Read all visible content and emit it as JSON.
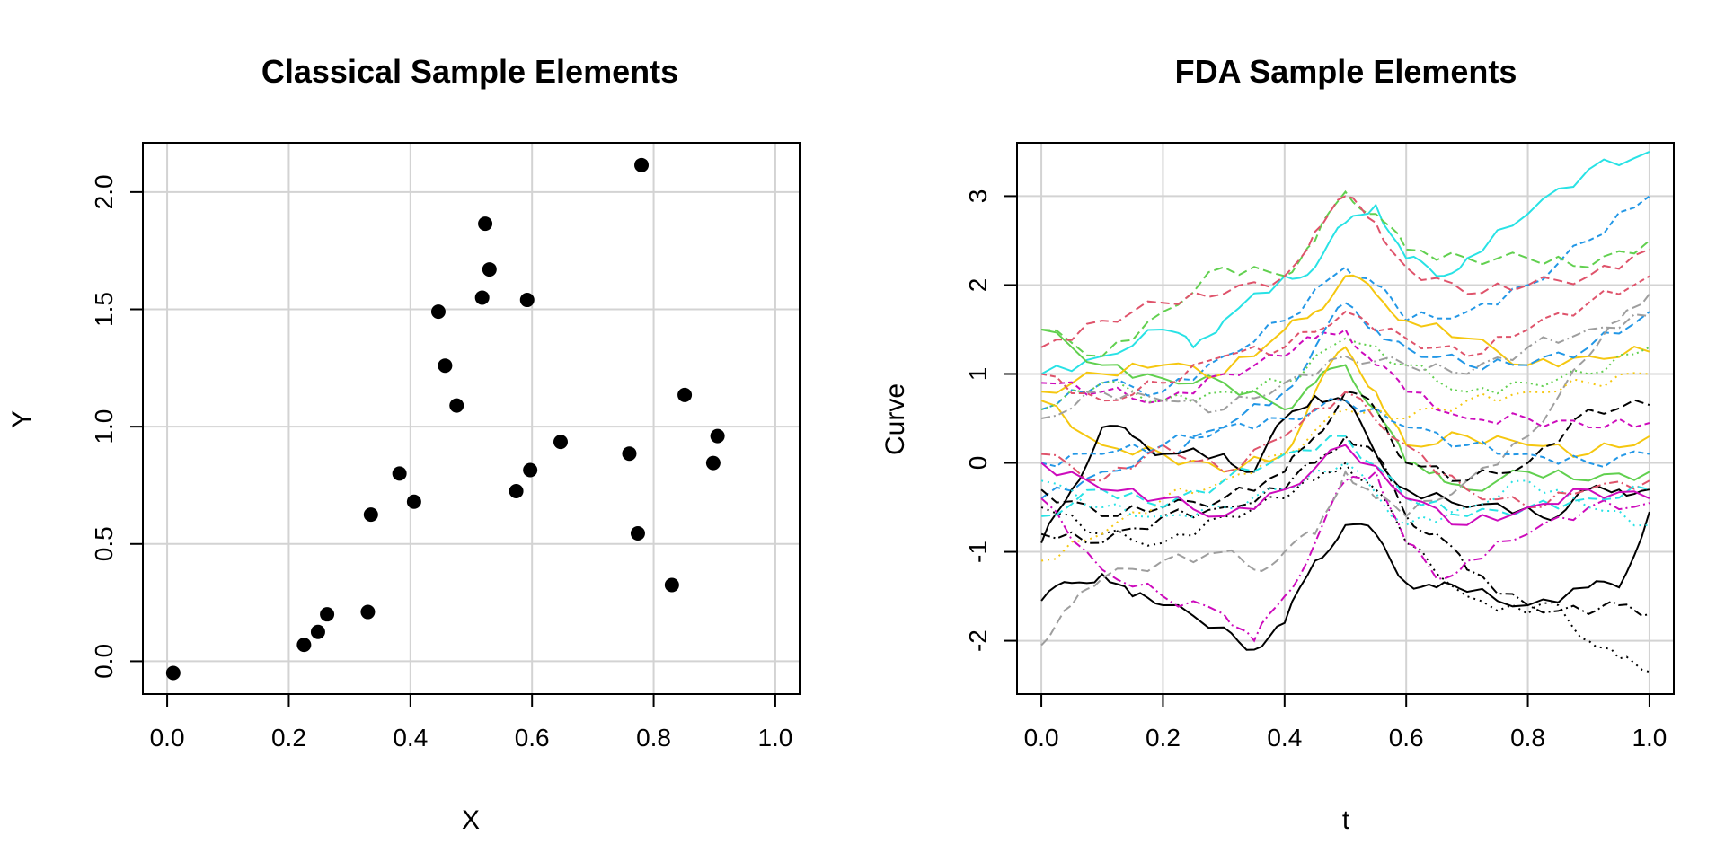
{
  "chart_data": [
    {
      "type": "scatter",
      "title": "Classical Sample Elements",
      "xlabel": "X",
      "ylabel": "Y",
      "xlim": [
        -0.04,
        1.04
      ],
      "ylim": [
        -0.14,
        2.21
      ],
      "xticks": [
        "0.0",
        "0.2",
        "0.4",
        "0.6",
        "0.8",
        "1.0"
      ],
      "yticks": [
        "0.0",
        "0.5",
        "1.0",
        "1.5",
        "2.0"
      ],
      "grid": true,
      "point_color": "#000000",
      "points": [
        {
          "x": 0.01,
          "y": -0.05
        },
        {
          "x": 0.225,
          "y": 0.07
        },
        {
          "x": 0.248,
          "y": 0.125
        },
        {
          "x": 0.263,
          "y": 0.2
        },
        {
          "x": 0.33,
          "y": 0.21
        },
        {
          "x": 0.335,
          "y": 0.625
        },
        {
          "x": 0.382,
          "y": 0.8
        },
        {
          "x": 0.406,
          "y": 0.68
        },
        {
          "x": 0.446,
          "y": 1.49
        },
        {
          "x": 0.457,
          "y": 1.26
        },
        {
          "x": 0.476,
          "y": 1.09
        },
        {
          "x": 0.518,
          "y": 1.55
        },
        {
          "x": 0.523,
          "y": 1.865
        },
        {
          "x": 0.53,
          "y": 1.67
        },
        {
          "x": 0.574,
          "y": 0.725
        },
        {
          "x": 0.592,
          "y": 1.54
        },
        {
          "x": 0.597,
          "y": 0.815
        },
        {
          "x": 0.647,
          "y": 0.935
        },
        {
          "x": 0.76,
          "y": 0.885
        },
        {
          "x": 0.774,
          "y": 0.545
        },
        {
          "x": 0.78,
          "y": 2.115
        },
        {
          "x": 0.83,
          "y": 0.325
        },
        {
          "x": 0.851,
          "y": 1.135
        },
        {
          "x": 0.898,
          "y": 0.845
        },
        {
          "x": 0.905,
          "y": 0.96
        }
      ]
    },
    {
      "type": "line",
      "title": "FDA Sample Elements",
      "xlabel": "t",
      "ylabel": "Curve",
      "xlim": [
        -0.04,
        1.04
      ],
      "ylim": [
        -2.6,
        3.6
      ],
      "xticks": [
        "0.0",
        "0.2",
        "0.4",
        "0.6",
        "0.8",
        "1.0"
      ],
      "yticks": [
        "-2",
        "-1",
        "0",
        "1",
        "2",
        "3"
      ],
      "grid": true,
      "palette": [
        "#000000",
        "#DF536B",
        "#61D04F",
        "#2297E6",
        "#28E2E5",
        "#CD0BBC",
        "#F5C710",
        "#9E9E9E"
      ],
      "series": [
        {
          "color": "#28E2E5",
          "dash": "solid",
          "x": [
            0,
            0.1,
            0.2,
            0.25,
            0.3,
            0.4,
            0.45,
            0.5,
            0.55,
            0.6,
            0.65,
            0.7,
            0.8,
            0.9,
            1.0
          ],
          "y": [
            1.0,
            1.2,
            1.5,
            1.3,
            1.6,
            2.1,
            2.2,
            2.7,
            2.9,
            2.3,
            2.1,
            2.3,
            2.8,
            3.3,
            3.5
          ]
        },
        {
          "color": "#2297E6",
          "dash": "6,4",
          "x": [
            0,
            0.1,
            0.2,
            0.3,
            0.4,
            0.5,
            0.55,
            0.6,
            0.7,
            0.8,
            0.9,
            1.0
          ],
          "y": [
            0.6,
            0.9,
            0.8,
            1.2,
            1.6,
            2.2,
            2.0,
            1.6,
            1.7,
            2.0,
            2.5,
            3.0
          ]
        },
        {
          "color": "#61D04F",
          "dash": "10,5",
          "x": [
            0,
            0.1,
            0.2,
            0.3,
            0.4,
            0.45,
            0.5,
            0.55,
            0.6,
            0.7,
            0.8,
            0.9,
            1.0
          ],
          "y": [
            1.5,
            1.2,
            1.7,
            2.2,
            2.1,
            2.5,
            3.05,
            2.8,
            2.4,
            2.3,
            2.3,
            2.2,
            2.5
          ]
        },
        {
          "color": "#DF536B",
          "dash": "10,5",
          "x": [
            0,
            0.1,
            0.2,
            0.3,
            0.4,
            0.45,
            0.5,
            0.55,
            0.6,
            0.7,
            0.8,
            0.9,
            1.0
          ],
          "y": [
            1.3,
            1.6,
            1.8,
            1.9,
            2.1,
            2.6,
            3.0,
            2.7,
            2.2,
            1.9,
            2.0,
            2.1,
            2.4
          ]
        },
        {
          "color": "#61D04F",
          "dash": "solid",
          "x": [
            0,
            0.1,
            0.2,
            0.3,
            0.4,
            0.45,
            0.5,
            0.55,
            0.6,
            0.65,
            0.7,
            0.8,
            0.9,
            1.0
          ],
          "y": [
            1.5,
            1.1,
            0.95,
            0.9,
            0.6,
            0.9,
            1.1,
            0.6,
            0.0,
            -0.1,
            -0.3,
            -0.1,
            -0.2,
            -0.1
          ]
        },
        {
          "color": "#F5C710",
          "dash": "solid",
          "x": [
            0,
            0.1,
            0.2,
            0.3,
            0.4,
            0.45,
            0.5,
            0.55,
            0.6,
            0.7,
            0.8,
            0.9,
            1.0
          ],
          "y": [
            0.7,
            0.2,
            0.1,
            -0.1,
            0.1,
            0.8,
            1.3,
            0.8,
            0.2,
            0.3,
            0.2,
            0.1,
            0.3
          ]
        },
        {
          "color": "#F5C710",
          "dash": "solid",
          "x": [
            0,
            0.1,
            0.2,
            0.3,
            0.4,
            0.45,
            0.5,
            0.55,
            0.6,
            0.7,
            0.8,
            0.9,
            1.0
          ],
          "y": [
            0.8,
            1.0,
            1.1,
            1.0,
            1.5,
            1.7,
            2.1,
            1.9,
            1.6,
            1.4,
            1.1,
            1.2,
            1.25
          ]
        },
        {
          "color": "#CD0BBC",
          "dash": "6,4",
          "x": [
            0,
            0.1,
            0.2,
            0.3,
            0.4,
            0.45,
            0.5,
            0.55,
            0.6,
            0.7,
            0.8,
            0.9,
            1.0
          ],
          "y": [
            0.9,
            0.8,
            0.7,
            1.0,
            1.2,
            1.4,
            1.5,
            1.1,
            0.8,
            0.5,
            0.5,
            0.4,
            0.45
          ]
        },
        {
          "color": "#2297E6",
          "dash": "10,5",
          "x": [
            0,
            0.1,
            0.2,
            0.3,
            0.4,
            0.45,
            0.5,
            0.55,
            0.6,
            0.7,
            0.8,
            0.9,
            1.0
          ],
          "y": [
            -0.4,
            -0.1,
            0.1,
            0.4,
            0.8,
            1.3,
            1.8,
            1.5,
            1.3,
            1.1,
            1.1,
            1.3,
            1.7
          ]
        },
        {
          "color": "#DF536B",
          "dash": "6,4",
          "x": [
            0,
            0.1,
            0.2,
            0.3,
            0.4,
            0.5,
            0.6,
            0.7,
            0.8,
            0.9,
            1.0
          ],
          "y": [
            1.0,
            0.7,
            0.9,
            1.2,
            1.3,
            1.7,
            1.4,
            1.2,
            1.5,
            1.8,
            2.1
          ]
        },
        {
          "color": "#61D04F",
          "dash": "2,4",
          "x": [
            0,
            0.1,
            0.2,
            0.3,
            0.4,
            0.5,
            0.6,
            0.7,
            0.8,
            0.9,
            1.0
          ],
          "y": [
            0.6,
            0.9,
            0.7,
            0.8,
            0.9,
            1.4,
            1.1,
            0.8,
            0.9,
            1.0,
            1.3
          ]
        },
        {
          "color": "#000000",
          "dash": "solid",
          "x": [
            0,
            0.05,
            0.1,
            0.15,
            0.2,
            0.3,
            0.35,
            0.4,
            0.45,
            0.5,
            0.55,
            0.6,
            0.7,
            0.8,
            0.85,
            0.9,
            0.95,
            1.0
          ],
          "y": [
            -0.9,
            -0.3,
            0.4,
            0.3,
            0.1,
            0.1,
            -0.1,
            0.5,
            0.75,
            0.7,
            0.1,
            -0.3,
            -0.5,
            -0.5,
            -0.6,
            -0.3,
            -0.3,
            -0.3
          ]
        },
        {
          "color": "#000000",
          "dash": "solid",
          "x": [
            0,
            0.05,
            0.1,
            0.15,
            0.2,
            0.3,
            0.35,
            0.4,
            0.45,
            0.5,
            0.55,
            0.6,
            0.65,
            0.7,
            0.8,
            0.9,
            0.95,
            1.0
          ],
          "y": [
            -1.55,
            -1.35,
            -1.25,
            -1.5,
            -1.6,
            -1.85,
            -2.1,
            -1.8,
            -1.1,
            -0.7,
            -0.8,
            -1.35,
            -1.4,
            -1.45,
            -1.6,
            -1.4,
            -1.4,
            -0.55
          ]
        },
        {
          "color": "#000000",
          "dash": "10,4,2,4",
          "x": [
            0,
            0.1,
            0.2,
            0.3,
            0.4,
            0.45,
            0.5,
            0.55,
            0.6,
            0.65,
            0.7,
            0.8,
            0.9,
            0.95,
            1.0
          ],
          "y": [
            -0.8,
            -0.9,
            -0.6,
            -0.5,
            -0.3,
            0.0,
            0.3,
            0.1,
            -0.6,
            -0.8,
            -1.2,
            -1.6,
            -1.7,
            -1.6,
            -1.7
          ]
        },
        {
          "color": "#000000",
          "dash": "2,5",
          "x": [
            0,
            0.1,
            0.2,
            0.3,
            0.4,
            0.45,
            0.5,
            0.55,
            0.6,
            0.7,
            0.8,
            0.85,
            0.9,
            0.95,
            1.0
          ],
          "y": [
            -0.5,
            -0.8,
            -0.9,
            -0.6,
            -0.4,
            -0.2,
            0.0,
            -0.3,
            -0.9,
            -1.5,
            -1.7,
            -1.6,
            -2.0,
            -2.2,
            -2.35
          ]
        },
        {
          "color": "#000000",
          "dash": "10,5",
          "x": [
            0,
            0.1,
            0.2,
            0.3,
            0.4,
            0.45,
            0.5,
            0.55,
            0.6,
            0.7,
            0.8,
            0.9,
            1.0
          ],
          "y": [
            -0.3,
            -0.6,
            -0.5,
            -0.4,
            -0.1,
            0.3,
            0.8,
            0.6,
            0.0,
            -0.2,
            0.0,
            0.6,
            0.65
          ]
        },
        {
          "color": "#CD0BBC",
          "dash": "10,4,2,4",
          "x": [
            0,
            0.1,
            0.2,
            0.3,
            0.35,
            0.4,
            0.45,
            0.5,
            0.55,
            0.6,
            0.65,
            0.7,
            0.8,
            0.9,
            1.0
          ],
          "y": [
            -0.4,
            -1.2,
            -1.5,
            -1.7,
            -2.0,
            -1.5,
            -0.9,
            -0.2,
            -0.1,
            -0.9,
            -1.3,
            -1.1,
            -0.8,
            -0.5,
            -0.45
          ]
        },
        {
          "color": "#9E9E9E",
          "dash": "10,5",
          "x": [
            0,
            0.05,
            0.1,
            0.2,
            0.3,
            0.35,
            0.4,
            0.45,
            0.5,
            0.55,
            0.6,
            0.7,
            0.8,
            0.9,
            0.95,
            1.0
          ],
          "y": [
            -2.05,
            -1.6,
            -1.3,
            -1.1,
            -1.0,
            -1.2,
            -1.0,
            -0.8,
            -0.1,
            -0.4,
            -0.6,
            -0.2,
            0.3,
            1.2,
            1.6,
            1.9
          ]
        },
        {
          "color": "#28E2E5",
          "dash": "2,5",
          "x": [
            0,
            0.1,
            0.2,
            0.3,
            0.4,
            0.5,
            0.6,
            0.7,
            0.8,
            0.9,
            1.0
          ],
          "y": [
            -0.2,
            -0.5,
            -0.6,
            -0.5,
            -0.3,
            0.0,
            -0.7,
            -0.5,
            -0.2,
            -0.5,
            -0.7
          ]
        },
        {
          "color": "#2297E6",
          "dash": "6,4",
          "x": [
            0,
            0.1,
            0.2,
            0.3,
            0.4,
            0.5,
            0.6,
            0.7,
            0.8,
            0.9,
            1.0
          ],
          "y": [
            0.0,
            0.1,
            0.2,
            0.4,
            0.5,
            0.7,
            0.4,
            0.2,
            0.1,
            0.0,
            0.1
          ]
        },
        {
          "color": "#DF536B",
          "dash": "10,4,2,4",
          "x": [
            0,
            0.1,
            0.2,
            0.3,
            0.4,
            0.5,
            0.6,
            0.7,
            0.8,
            0.9,
            1.0
          ],
          "y": [
            0.1,
            -0.2,
            0.2,
            -0.1,
            0.3,
            0.8,
            0.2,
            -0.3,
            -0.5,
            -0.3,
            -0.2
          ]
        },
        {
          "color": "#F5C710",
          "dash": "2,5",
          "x": [
            0,
            0.1,
            0.2,
            0.3,
            0.4,
            0.5,
            0.6,
            0.7,
            0.8,
            0.9,
            1.0
          ],
          "y": [
            -1.1,
            -0.8,
            -0.4,
            -0.2,
            0.1,
            0.6,
            0.5,
            0.7,
            0.8,
            0.9,
            1.0
          ]
        },
        {
          "color": "#9E9E9E",
          "dash": "10,4,2,4",
          "x": [
            0,
            0.1,
            0.2,
            0.3,
            0.4,
            0.5,
            0.6,
            0.7,
            0.8,
            0.9,
            1.0
          ],
          "y": [
            0.5,
            0.8,
            0.7,
            0.6,
            0.9,
            1.2,
            1.1,
            1.0,
            1.3,
            1.5,
            1.65
          ]
        },
        {
          "color": "#28E2E5",
          "dash": "10,5",
          "x": [
            0,
            0.1,
            0.2,
            0.3,
            0.4,
            0.5,
            0.6,
            0.7,
            0.8,
            0.9,
            1.0
          ],
          "y": [
            -0.6,
            -0.3,
            -0.5,
            -0.2,
            0.1,
            0.3,
            -0.4,
            -0.6,
            -0.5,
            -0.4,
            -0.3
          ]
        },
        {
          "color": "#CD0BBC",
          "dash": "solid",
          "x": [
            0,
            0.1,
            0.2,
            0.3,
            0.4,
            0.5,
            0.6,
            0.7,
            0.8,
            0.9,
            1.0
          ],
          "y": [
            0.0,
            -0.3,
            -0.4,
            -0.6,
            -0.3,
            0.2,
            -0.4,
            -0.7,
            -0.5,
            -0.3,
            -0.4
          ]
        }
      ]
    }
  ]
}
